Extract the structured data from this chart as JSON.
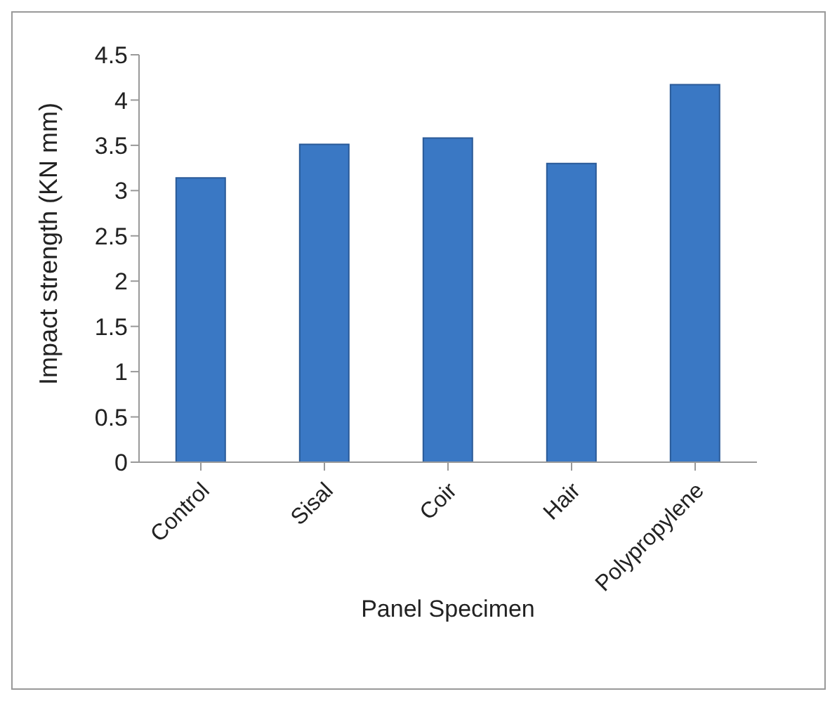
{
  "chart_data": {
    "type": "bar",
    "categories": [
      "Control",
      "Sisal",
      "Coir",
      "Hair",
      "Polypropylene"
    ],
    "values": [
      3.14,
      3.51,
      3.58,
      3.3,
      4.17
    ],
    "color": "#3a78c4",
    "xlabel": "Panel  Specimen",
    "ylabel": "Impact strength  (KN mm)",
    "ylim": [
      0,
      4.5
    ],
    "yticks": [
      0,
      0.5,
      1,
      1.5,
      2,
      2.5,
      3,
      3.5,
      4,
      4.5
    ],
    "grid": false,
    "legend": false
  }
}
